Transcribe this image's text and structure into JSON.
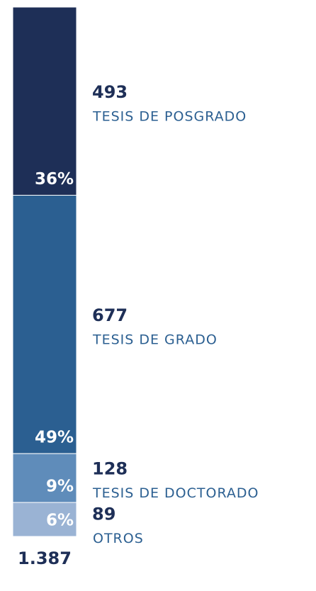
{
  "chart_data": {
    "type": "stacked-bar",
    "series": [
      {
        "name": "TESIS DE POSGRADO",
        "color": "#1e2f57",
        "values": [
          493
        ],
        "percent_labels": [
          "36%"
        ]
      },
      {
        "name": "TESIS DE GRADO",
        "color": "#2b5f91",
        "values": [
          677
        ],
        "percent_labels": [
          "49%"
        ]
      },
      {
        "name": "TESIS DE DOCTORADO",
        "color": "#5f8cba",
        "values": [
          128
        ],
        "percent_labels": [
          "9%"
        ]
      },
      {
        "name": "OTROS",
        "color": "#9ab3d4",
        "values": [
          89
        ],
        "percent_labels": [
          "6%"
        ]
      }
    ],
    "total": {
      "value": 1387,
      "label": "1.387"
    }
  }
}
